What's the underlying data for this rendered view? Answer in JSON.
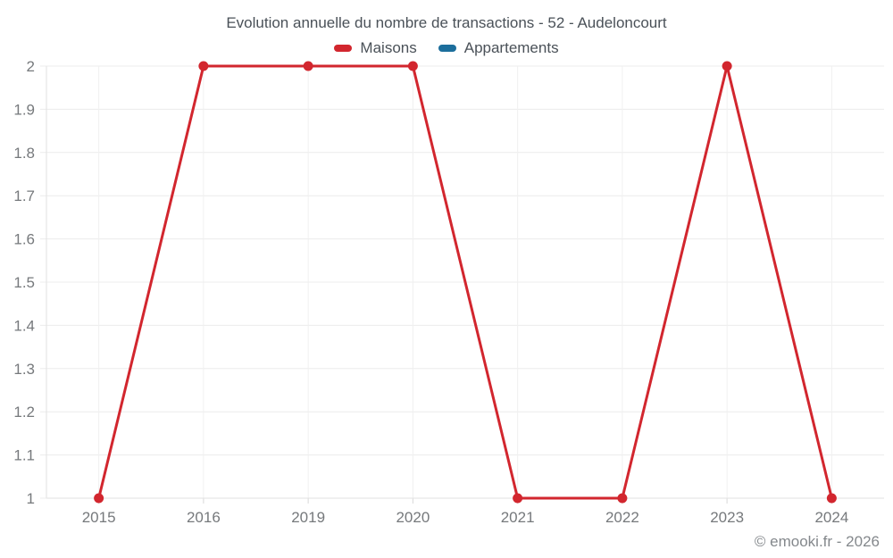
{
  "watermark": "© emooki.fr - 2026",
  "colors": {
    "maisons": "#d2262e",
    "appartements": "#1c6e9c",
    "title_text": "#4a5158",
    "axis_label_text": "#76797c",
    "grid_horizontal": "#ececec",
    "grid_vertical": "#f0f0f0",
    "axis_line": "#e2e2e2",
    "tick_mark": "#d8d8d8",
    "background": "#ffffff"
  },
  "chart_data": {
    "type": "line",
    "title": "Evolution annuelle du nombre de transactions - 52 - Audeloncourt",
    "categories": [
      "2015",
      "2016",
      "2019",
      "2020",
      "2021",
      "2022",
      "2023",
      "2024"
    ],
    "series": [
      {
        "name": "Maisons",
        "color": "#d2262e",
        "values": [
          1,
          2,
          2,
          2,
          1,
          1,
          2,
          1
        ]
      },
      {
        "name": "Appartements",
        "color": "#1c6e9c",
        "values": []
      }
    ],
    "xlabel": "",
    "ylabel": "",
    "ylim": [
      1,
      2
    ],
    "ytick_labels": [
      "1",
      "1.1",
      "1.2",
      "1.3",
      "1.4",
      "1.5",
      "1.6",
      "1.7",
      "1.8",
      "1.9",
      "2"
    ],
    "grid": true,
    "legend_position": "top",
    "marker": "circle"
  }
}
